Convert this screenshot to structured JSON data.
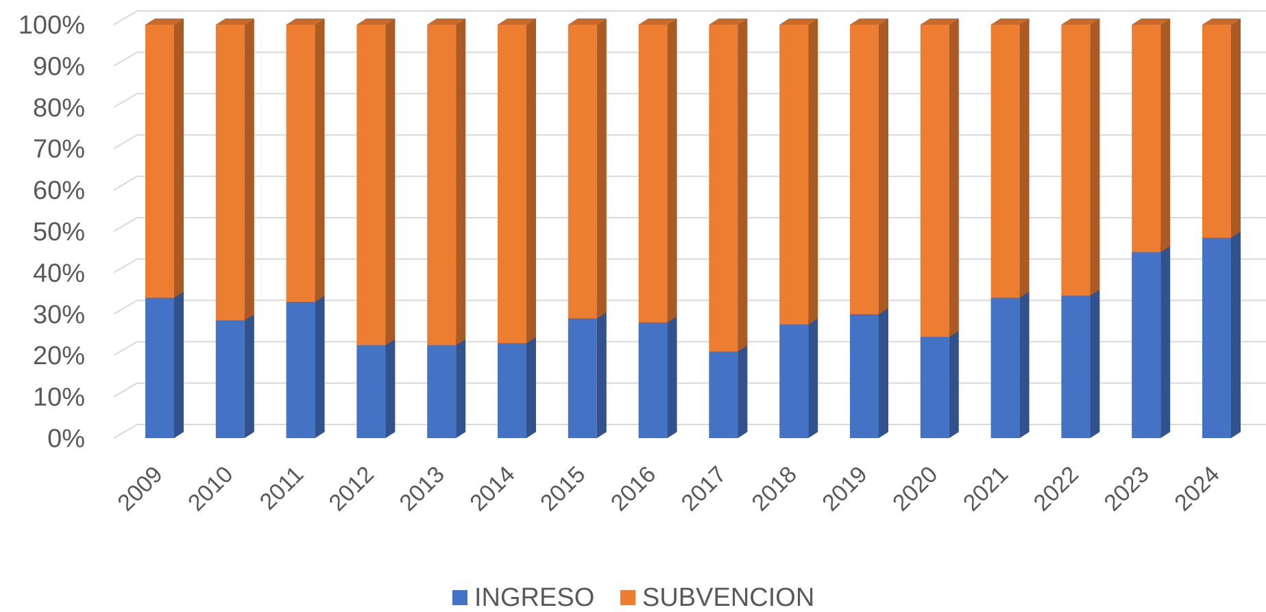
{
  "chart_data": {
    "type": "bar",
    "stacked": "percent",
    "three_d": true,
    "categories": [
      "2009",
      "2010",
      "2011",
      "2012",
      "2013",
      "2014",
      "2015",
      "2016",
      "2017",
      "2018",
      "2019",
      "2020",
      "2021",
      "2022",
      "2023",
      "2024"
    ],
    "series": [
      {
        "name": "INGRESO",
        "color": "#4472C4",
        "values": [
          34,
          28.5,
          33,
          22.5,
          22.5,
          23,
          29,
          28,
          21,
          27.5,
          30,
          24.5,
          34,
          34.5,
          45,
          48.5
        ]
      },
      {
        "name": "SUBVENCION",
        "color": "#ED7D31",
        "values": [
          66,
          71.5,
          67,
          77.5,
          77.5,
          77,
          71,
          72,
          79,
          72.5,
          70,
          75.5,
          66,
          65.5,
          55,
          51.5
        ]
      }
    ],
    "yticks": [
      "0%",
      "10%",
      "20%",
      "30%",
      "40%",
      "50%",
      "60%",
      "70%",
      "80%",
      "90%",
      "100%"
    ],
    "ylim": [
      0,
      100
    ],
    "grid": true,
    "legend": "bottom"
  }
}
